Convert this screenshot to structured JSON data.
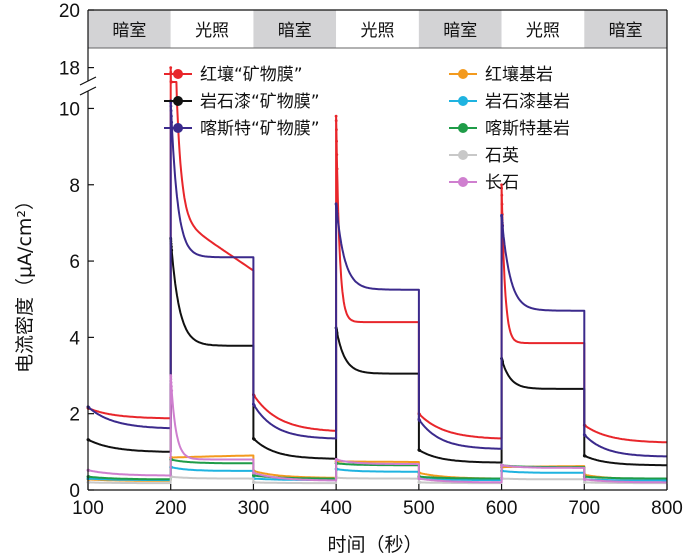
{
  "chart_data": {
    "type": "line",
    "xlabel": "时间（秒）",
    "ylabel": "电流密度（μA/cm²）",
    "xlim": [
      100,
      800
    ],
    "xticks": [
      100,
      200,
      300,
      400,
      500,
      600,
      700,
      800
    ],
    "ylim_lower": [
      0,
      10.3
    ],
    "ylim_upper": [
      17.5,
      20
    ],
    "yticks": [
      0,
      2,
      4,
      6,
      8,
      10,
      18,
      20
    ],
    "axis_break_between": [
      10.3,
      17.5
    ],
    "phases": [
      {
        "label": "暗室",
        "start": 100,
        "end": 200,
        "type": "dark"
      },
      {
        "label": "光照",
        "start": 200,
        "end": 300,
        "type": "light"
      },
      {
        "label": "暗室",
        "start": 300,
        "end": 400,
        "type": "dark"
      },
      {
        "label": "光照",
        "start": 400,
        "end": 500,
        "type": "light"
      },
      {
        "label": "暗室",
        "start": 500,
        "end": 600,
        "type": "dark"
      },
      {
        "label": "光照",
        "start": 600,
        "end": 700,
        "type": "light"
      },
      {
        "label": "暗室",
        "start": 700,
        "end": 800,
        "type": "dark"
      }
    ],
    "series": [
      {
        "name": "红壤“矿物膜”",
        "color": "#e8262b",
        "segments": [
          {
            "start": 100,
            "end": 200,
            "v0": 2.15,
            "vend": 1.88,
            "k": 0.3
          },
          {
            "start": 200,
            "end": 300,
            "v0": 18.0,
            "vend": 5.75,
            "k": 0.02,
            "mode": "lin"
          },
          {
            "start": 300,
            "end": 400,
            "v0": 2.5,
            "vend": 1.55,
            "k": 0.3
          },
          {
            "start": 400,
            "end": 500,
            "v0": 9.8,
            "vend": 4.4,
            "k": 0.04
          },
          {
            "start": 500,
            "end": 600,
            "v0": 2.0,
            "vend": 1.35,
            "k": 0.3
          },
          {
            "start": 600,
            "end": 700,
            "v0": 8.0,
            "vend": 3.85,
            "k": 0.04
          },
          {
            "start": 700,
            "end": 800,
            "v0": 1.7,
            "vend": 1.25,
            "k": 0.3
          }
        ]
      },
      {
        "name": "岩石漆“矿物膜”",
        "color": "#111111",
        "segments": [
          {
            "start": 100,
            "end": 200,
            "v0": 1.32,
            "vend": 1.0,
            "k": 0.3
          },
          {
            "start": 200,
            "end": 300,
            "v0": 6.6,
            "vend": 3.78,
            "k": 0.1
          },
          {
            "start": 300,
            "end": 400,
            "v0": 1.35,
            "vend": 0.82,
            "k": 0.25
          },
          {
            "start": 400,
            "end": 500,
            "v0": 4.25,
            "vend": 3.05,
            "k": 0.1
          },
          {
            "start": 500,
            "end": 600,
            "v0": 1.05,
            "vend": 0.72,
            "k": 0.25
          },
          {
            "start": 600,
            "end": 700,
            "v0": 3.45,
            "vend": 2.65,
            "k": 0.1
          },
          {
            "start": 700,
            "end": 800,
            "v0": 0.9,
            "vend": 0.65,
            "k": 0.25
          }
        ]
      },
      {
        "name": "喀斯特“矿物膜”",
        "color": "#3b2a8c",
        "segments": [
          {
            "start": 100,
            "end": 200,
            "v0": 2.18,
            "vend": 1.62,
            "k": 0.3
          },
          {
            "start": 200,
            "end": 300,
            "v0": 10.2,
            "vend": 6.1,
            "k": 0.08
          },
          {
            "start": 300,
            "end": 400,
            "v0": 2.25,
            "vend": 1.35,
            "k": 0.25
          },
          {
            "start": 400,
            "end": 500,
            "v0": 7.5,
            "vend": 5.25,
            "k": 0.1
          },
          {
            "start": 500,
            "end": 600,
            "v0": 1.85,
            "vend": 1.08,
            "k": 0.25
          },
          {
            "start": 600,
            "end": 700,
            "v0": 7.2,
            "vend": 4.7,
            "k": 0.1
          },
          {
            "start": 700,
            "end": 800,
            "v0": 1.45,
            "vend": 0.88,
            "k": 0.25
          }
        ]
      },
      {
        "name": "红壤基岩",
        "color": "#f39a1e",
        "segments": [
          {
            "start": 100,
            "end": 200,
            "v0": 0.28,
            "vend": 0.24,
            "k": 0.3
          },
          {
            "start": 200,
            "end": 300,
            "v0": 0.85,
            "vend": 0.95,
            "k": 0.5,
            "mode": "lin"
          },
          {
            "start": 300,
            "end": 400,
            "v0": 0.5,
            "vend": 0.32,
            "k": 0.3
          },
          {
            "start": 400,
            "end": 500,
            "v0": 0.75,
            "vend": 0.72,
            "k": 0.5,
            "mode": "lin"
          },
          {
            "start": 500,
            "end": 600,
            "v0": 0.45,
            "vend": 0.3,
            "k": 0.3
          },
          {
            "start": 600,
            "end": 700,
            "v0": 0.6,
            "vend": 0.65,
            "k": 0.5,
            "mode": "lin"
          },
          {
            "start": 700,
            "end": 800,
            "v0": 0.4,
            "vend": 0.28,
            "k": 0.3
          }
        ]
      },
      {
        "name": "岩石漆基岩",
        "color": "#1fb3e0",
        "segments": [
          {
            "start": 100,
            "end": 200,
            "v0": 0.3,
            "vend": 0.26,
            "k": 0.3
          },
          {
            "start": 200,
            "end": 300,
            "v0": 0.6,
            "vend": 0.5,
            "k": 0.2
          },
          {
            "start": 300,
            "end": 400,
            "v0": 0.3,
            "vend": 0.26,
            "k": 0.3
          },
          {
            "start": 400,
            "end": 500,
            "v0": 0.55,
            "vend": 0.48,
            "k": 0.2
          },
          {
            "start": 500,
            "end": 600,
            "v0": 0.3,
            "vend": 0.26,
            "k": 0.3
          },
          {
            "start": 600,
            "end": 700,
            "v0": 0.5,
            "vend": 0.45,
            "k": 0.2
          },
          {
            "start": 700,
            "end": 800,
            "v0": 0.28,
            "vend": 0.25,
            "k": 0.3
          }
        ]
      },
      {
        "name": "喀斯特基岩",
        "color": "#1f9c48",
        "segments": [
          {
            "start": 100,
            "end": 200,
            "v0": 0.35,
            "vend": 0.28,
            "k": 0.3
          },
          {
            "start": 200,
            "end": 300,
            "v0": 0.8,
            "vend": 0.7,
            "k": 0.2
          },
          {
            "start": 300,
            "end": 400,
            "v0": 0.38,
            "vend": 0.3,
            "k": 0.3
          },
          {
            "start": 400,
            "end": 500,
            "v0": 0.7,
            "vend": 0.65,
            "k": 0.2
          },
          {
            "start": 500,
            "end": 600,
            "v0": 0.35,
            "vend": 0.3,
            "k": 0.3
          },
          {
            "start": 600,
            "end": 700,
            "v0": 0.65,
            "vend": 0.6,
            "k": 0.2
          },
          {
            "start": 700,
            "end": 800,
            "v0": 0.35,
            "vend": 0.3,
            "k": 0.3
          }
        ]
      },
      {
        "name": "石英",
        "color": "#c8c8c8",
        "segments": [
          {
            "start": 100,
            "end": 200,
            "v0": 0.2,
            "vend": 0.18,
            "k": 0.3
          },
          {
            "start": 200,
            "end": 300,
            "v0": 0.35,
            "vend": 0.3,
            "k": 0.2
          },
          {
            "start": 300,
            "end": 400,
            "v0": 0.2,
            "vend": 0.18,
            "k": 0.3
          },
          {
            "start": 400,
            "end": 500,
            "v0": 0.32,
            "vend": 0.3,
            "k": 0.2
          },
          {
            "start": 500,
            "end": 600,
            "v0": 0.2,
            "vend": 0.18,
            "k": 0.3
          },
          {
            "start": 600,
            "end": 700,
            "v0": 0.3,
            "vend": 0.28,
            "k": 0.2
          },
          {
            "start": 700,
            "end": 800,
            "v0": 0.2,
            "vend": 0.18,
            "k": 0.3
          }
        ]
      },
      {
        "name": "长石",
        "color": "#cf7fcf",
        "segments": [
          {
            "start": 100,
            "end": 200,
            "v0": 0.52,
            "vend": 0.38,
            "k": 0.3
          },
          {
            "start": 200,
            "end": 300,
            "v0": 3.0,
            "vend": 0.8,
            "k": 0.06
          },
          {
            "start": 300,
            "end": 400,
            "v0": 0.45,
            "vend": 0.25,
            "k": 0.3
          },
          {
            "start": 400,
            "end": 500,
            "v0": 0.8,
            "vend": 0.68,
            "k": 0.2
          },
          {
            "start": 500,
            "end": 600,
            "v0": 0.3,
            "vend": 0.2,
            "k": 0.3
          },
          {
            "start": 600,
            "end": 700,
            "v0": 0.65,
            "vend": 0.58,
            "k": 0.2
          },
          {
            "start": 700,
            "end": 800,
            "v0": 0.28,
            "vend": 0.2,
            "k": 0.3
          }
        ]
      }
    ]
  }
}
